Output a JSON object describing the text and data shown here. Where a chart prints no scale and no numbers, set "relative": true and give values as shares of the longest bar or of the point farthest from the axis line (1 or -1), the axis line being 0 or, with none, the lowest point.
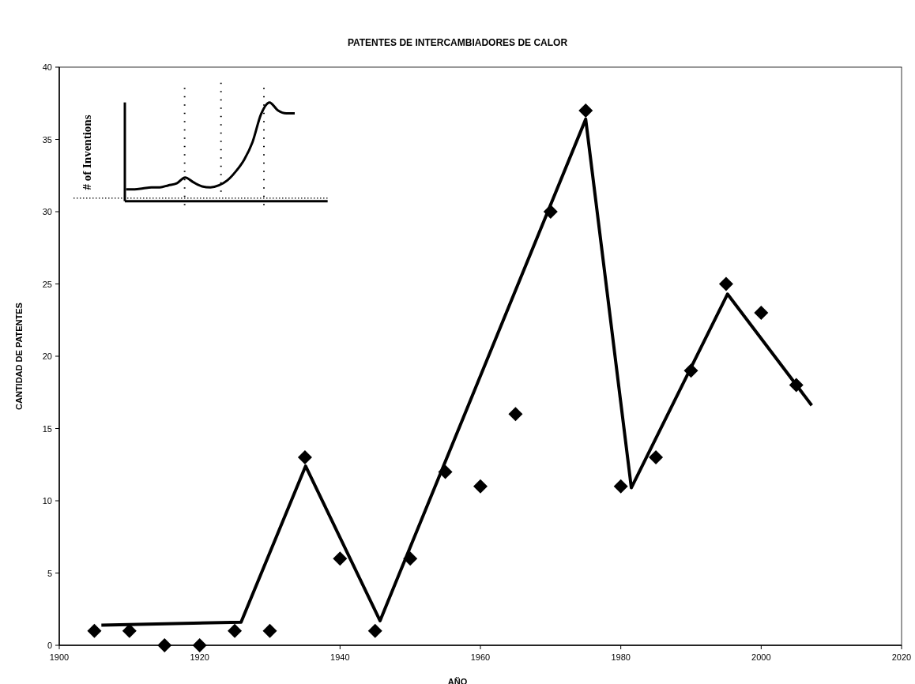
{
  "chart_data": [
    {
      "type": "scatter",
      "title": "PATENTES DE INTERCAMBIADORES DE CALOR",
      "xlabel": "AÑO",
      "ylabel": "CANTIDAD DE PATENTES",
      "x": [
        1905,
        1910,
        1915,
        1920,
        1925,
        1930,
        1935,
        1940,
        1945,
        1950,
        1955,
        1960,
        1965,
        1970,
        1975,
        1980,
        1985,
        1990,
        1995,
        2000,
        2005
      ],
      "series": [
        {
          "type": "scatter",
          "color": "#000000",
          "marker": "diamond",
          "values": [
            1,
            1,
            0,
            0,
            1,
            1,
            13,
            6,
            1,
            6,
            12,
            11,
            16,
            30,
            37,
            11,
            13,
            19,
            25,
            23,
            18
          ]
        },
        {
          "type": "line",
          "color": "#000000",
          "marker": "none",
          "x": [
            1906,
            1925.9,
            1935.1,
            1945.7,
            1975,
            1981.5,
            1995.2,
            2007.2
          ],
          "values": [
            1.4,
            1.6,
            12.4,
            1.7,
            36.4,
            10.9,
            24.3,
            16.6
          ]
        }
      ],
      "xlim": [
        1900,
        2020
      ],
      "xticks": [
        1900,
        1920,
        1940,
        1960,
        1980,
        2000,
        2020
      ],
      "ylim": [
        0,
        40
      ],
      "yticks": [
        0,
        5,
        10,
        15,
        20,
        25,
        30,
        35,
        40
      ]
    },
    {
      "type": "line",
      "ylabel": "# of Inventions",
      "relative": true,
      "categories": [
        null,
        null,
        null,
        null,
        null,
        null,
        null,
        null,
        null,
        null,
        null,
        null,
        null,
        null,
        null,
        null,
        null,
        null,
        null,
        null,
        null
      ],
      "ref_lines": [
        {
          "axis": "y",
          "value": 0.03,
          "color": "#000000",
          "line_style": "dotted"
        }
      ],
      "series": [
        {
          "color": "#000000",
          "values": [
            0.12,
            0.12,
            0.13,
            0.14,
            0.14,
            0.16,
            0.18,
            0.24,
            0.19,
            0.15,
            0.14,
            0.16,
            0.21,
            0.3,
            0.42,
            0.6,
            0.88,
            1,
            0.92,
            0.89,
            0.89
          ]
        }
      ]
    }
  ]
}
